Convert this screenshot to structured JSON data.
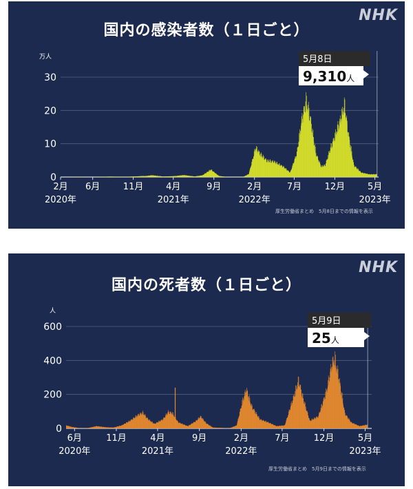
{
  "logo": "NHK",
  "chart_data": [
    {
      "type": "bar",
      "title": "国内の感染者数（１日ごと）",
      "ylabel": "万人",
      "yticks": [
        "0",
        "10",
        "20",
        "30"
      ],
      "ylim": [
        0,
        30
      ],
      "xlim": [
        "2020-02-01",
        "2023-05-15"
      ],
      "x_ticks": [
        {
          "date": "2020-02-01",
          "label": "2月",
          "year": "2020年"
        },
        {
          "date": "2020-06-01",
          "label": "6月",
          "year": ""
        },
        {
          "date": "2020-11-01",
          "label": "11月",
          "year": ""
        },
        {
          "date": "2021-04-01",
          "label": "4月",
          "year": "2021年"
        },
        {
          "date": "2021-09-01",
          "label": "9月",
          "year": ""
        },
        {
          "date": "2022-02-01",
          "label": "2月",
          "year": "2022年"
        },
        {
          "date": "2022-07-01",
          "label": "7月",
          "year": ""
        },
        {
          "date": "2022-12-01",
          "label": "12月",
          "year": ""
        },
        {
          "date": "2023-05-01",
          "label": "5月",
          "year": "2023年"
        }
      ],
      "series": [
        {
          "points": [
            [
              "2020-02-01",
              0
            ],
            [
              "2020-04-10",
              0.05
            ],
            [
              "2020-06-01",
              0.01
            ],
            [
              "2020-08-05",
              0.13
            ],
            [
              "2020-10-01",
              0.06
            ],
            [
              "2020-11-15",
              0.2
            ],
            [
              "2020-12-20",
              0.35
            ],
            [
              "2021-01-10",
              0.6
            ],
            [
              "2021-02-20",
              0.15
            ],
            [
              "2021-04-01",
              0.25
            ],
            [
              "2021-05-10",
              0.65
            ],
            [
              "2021-06-20",
              0.15
            ],
            [
              "2021-07-20",
              0.6
            ],
            [
              "2021-08-20",
              2.5
            ],
            [
              "2021-09-20",
              0.3
            ],
            [
              "2021-10-20",
              0.03
            ],
            [
              "2021-12-20",
              0.03
            ],
            [
              "2022-01-10",
              1.0
            ],
            [
              "2022-02-05",
              10.0
            ],
            [
              "2022-02-25",
              7.5
            ],
            [
              "2022-03-20",
              5.5
            ],
            [
              "2022-04-15",
              5.2
            ],
            [
              "2022-05-20",
              3.5
            ],
            [
              "2022-06-15",
              1.5
            ],
            [
              "2022-07-10",
              8.0
            ],
            [
              "2022-07-30",
              20.0
            ],
            [
              "2022-08-15",
              26.0
            ],
            [
              "2022-08-30",
              20.0
            ],
            [
              "2022-09-20",
              8.0
            ],
            [
              "2022-10-10",
              3.5
            ],
            [
              "2022-10-25",
              4.0
            ],
            [
              "2022-11-15",
              10.0
            ],
            [
              "2022-12-01",
              14.0
            ],
            [
              "2022-12-20",
              19.0
            ],
            [
              "2023-01-06",
              24.5
            ],
            [
              "2023-01-20",
              15.0
            ],
            [
              "2023-02-10",
              4.0
            ],
            [
              "2023-03-10",
              1.5
            ],
            [
              "2023-04-10",
              0.9
            ],
            [
              "2023-05-08",
              0.931
            ]
          ]
        }
      ],
      "annotation": {
        "date_label": "5月8日",
        "value": "9,310",
        "unit": "人"
      },
      "color": "#d6e02a",
      "source": "厚生労働省まとめ　5月8日までの情報を表示"
    },
    {
      "type": "bar",
      "title": "国内の死者数（１日ごと）",
      "ylabel": "人",
      "yticks": [
        "0",
        "200",
        "400",
        "600"
      ],
      "ylim": [
        0,
        600
      ],
      "xlim": [
        "2020-05-01",
        "2023-05-25"
      ],
      "x_ticks": [
        {
          "date": "2020-06-01",
          "label": "6月",
          "year": "2020年"
        },
        {
          "date": "2020-11-01",
          "label": "11月",
          "year": ""
        },
        {
          "date": "2021-04-01",
          "label": "4月",
          "year": "2021年"
        },
        {
          "date": "2021-09-01",
          "label": "9月",
          "year": ""
        },
        {
          "date": "2022-02-01",
          "label": "2月",
          "year": "2022年"
        },
        {
          "date": "2022-07-01",
          "label": "7月",
          "year": ""
        },
        {
          "date": "2022-12-01",
          "label": "12月",
          "year": ""
        },
        {
          "date": "2023-05-01",
          "label": "5月",
          "year": "2023年"
        }
      ],
      "series": [
        {
          "points": [
            [
              "2020-05-01",
              20
            ],
            [
              "2020-05-20",
              10
            ],
            [
              "2020-06-20",
              1
            ],
            [
              "2020-07-20",
              2
            ],
            [
              "2020-08-20",
              15
            ],
            [
              "2020-09-20",
              8
            ],
            [
              "2020-10-20",
              5
            ],
            [
              "2020-11-20",
              20
            ],
            [
              "2020-12-20",
              50
            ],
            [
              "2021-01-20",
              90
            ],
            [
              "2021-02-05",
              105
            ],
            [
              "2021-02-25",
              60
            ],
            [
              "2021-03-20",
              30
            ],
            [
              "2021-04-20",
              60
            ],
            [
              "2021-05-10",
              110
            ],
            [
              "2021-05-25",
              100
            ],
            [
              "2021-06-15",
              40
            ],
            [
              "2021-07-20",
              15
            ],
            [
              "2021-08-20",
              50
            ],
            [
              "2021-09-05",
              80
            ],
            [
              "2021-09-25",
              35
            ],
            [
              "2021-10-20",
              5
            ],
            [
              "2021-12-20",
              1
            ],
            [
              "2022-01-15",
              20
            ],
            [
              "2022-02-05",
              180
            ],
            [
              "2022-02-20",
              260
            ],
            [
              "2022-03-10",
              150
            ],
            [
              "2022-04-10",
              60
            ],
            [
              "2022-05-10",
              40
            ],
            [
              "2022-06-10",
              15
            ],
            [
              "2022-07-10",
              20
            ],
            [
              "2022-08-10",
              200
            ],
            [
              "2022-08-30",
              320
            ],
            [
              "2022-09-15",
              200
            ],
            [
              "2022-10-10",
              50
            ],
            [
              "2022-11-10",
              80
            ],
            [
              "2022-12-10",
              250
            ],
            [
              "2022-12-30",
              430
            ],
            [
              "2023-01-10",
              460
            ],
            [
              "2023-01-25",
              330
            ],
            [
              "2023-02-15",
              100
            ],
            [
              "2023-03-10",
              40
            ],
            [
              "2023-04-10",
              15
            ],
            [
              "2023-05-09",
              25
            ]
          ],
          "spikes": [
            [
              "2021-06-03",
              240
            ]
          ]
        }
      ],
      "annotation": {
        "date_label": "5月9日",
        "value": "25",
        "unit": "人"
      },
      "color": "#e68a2e",
      "source": "厚生労働省まとめ　5月9日までの情報を表示"
    }
  ]
}
